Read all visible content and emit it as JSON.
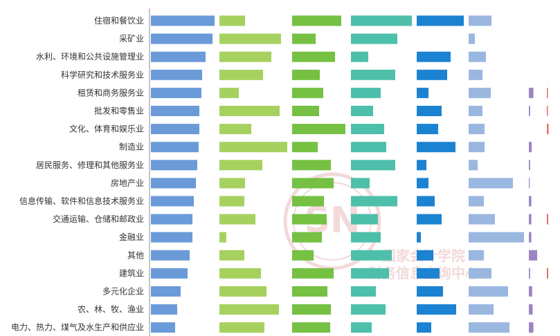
{
  "colors": {
    "background": "#ffffff",
    "axis": "#8c8c8c",
    "label_text": "#333333",
    "watermark": "#f3d9d9",
    "series": [
      "#6a9bd8",
      "#a6d15f",
      "#76c043",
      "#4dbfaa",
      "#1c82d2",
      "#9ab7e0",
      "#9b85c4",
      "#e56c64"
    ]
  },
  "watermark": {
    "text_top": "SN",
    "text_mid": "国家会计学院",
    "text_bot": "财务信息查询中心"
  },
  "chart_data": {
    "type": "bar",
    "orientation": "horizontal",
    "grouping": "panels",
    "legend": "none",
    "grid": false,
    "categories": [
      "住宿和餐饮业",
      "采矿业",
      "水利、环境和公共设施管理业",
      "科学研究和技术服务业",
      "租赁和商务服务业",
      "批发和零售业",
      "文化、体育和娱乐业",
      "制造业",
      "居民服务、修理和其他服务业",
      "房地产业",
      "信息传输、软件和信息技术服务业",
      "交通运输、仓储和邮政业",
      "金融业",
      "其他",
      "建筑业",
      "多元化企业",
      "农、林、牧、渔业",
      "电力、热力、煤气及水生产和供应业"
    ],
    "series": [
      {
        "color": "#6a9bd8",
        "values": [
          92,
          89,
          79,
          74,
          73,
          70,
          70,
          69,
          67,
          65,
          62,
          60,
          60,
          56,
          53,
          43,
          38,
          35
        ]
      },
      {
        "color": "#a6d15f",
        "values": [
          37,
          89,
          75,
          63,
          28,
          87,
          46,
          98,
          62,
          37,
          36,
          52,
          10,
          36,
          60,
          68,
          86,
          65
        ]
      },
      {
        "color": "#76c043",
        "values": [
          71,
          34,
          62,
          40,
          45,
          39,
          77,
          37,
          56,
          60,
          46,
          50,
          43,
          31,
          60,
          51,
          56,
          55
        ]
      },
      {
        "color": "#4dbfaa",
        "values": [
          88,
          67,
          25,
          64,
          43,
          32,
          48,
          51,
          64,
          27,
          67,
          39,
          43,
          59,
          55,
          36,
          50,
          30
        ]
      },
      {
        "color": "#1c82d2",
        "values": [
          68,
          0,
          49,
          44,
          17,
          36,
          31,
          56,
          14,
          17,
          26,
          36,
          6,
          24,
          33,
          38,
          57,
          21
        ]
      },
      {
        "color": "#9ab7e0",
        "values": [
          33,
          9,
          25,
          20,
          32,
          20,
          23,
          23,
          13,
          64,
          22,
          38,
          80,
          22,
          33,
          57,
          36,
          59
        ]
      },
      {
        "color": "#9b85c4",
        "values": [
          0,
          0,
          0,
          0,
          11,
          3,
          0,
          7,
          3,
          2,
          6,
          6,
          6,
          20,
          3,
          8,
          9,
          11
        ]
      },
      {
        "color": "#e56c64",
        "values": [
          0,
          0,
          0,
          0,
          3,
          3,
          5,
          0,
          0,
          0,
          0,
          4,
          0,
          0,
          4,
          0,
          0,
          0
        ]
      }
    ]
  }
}
